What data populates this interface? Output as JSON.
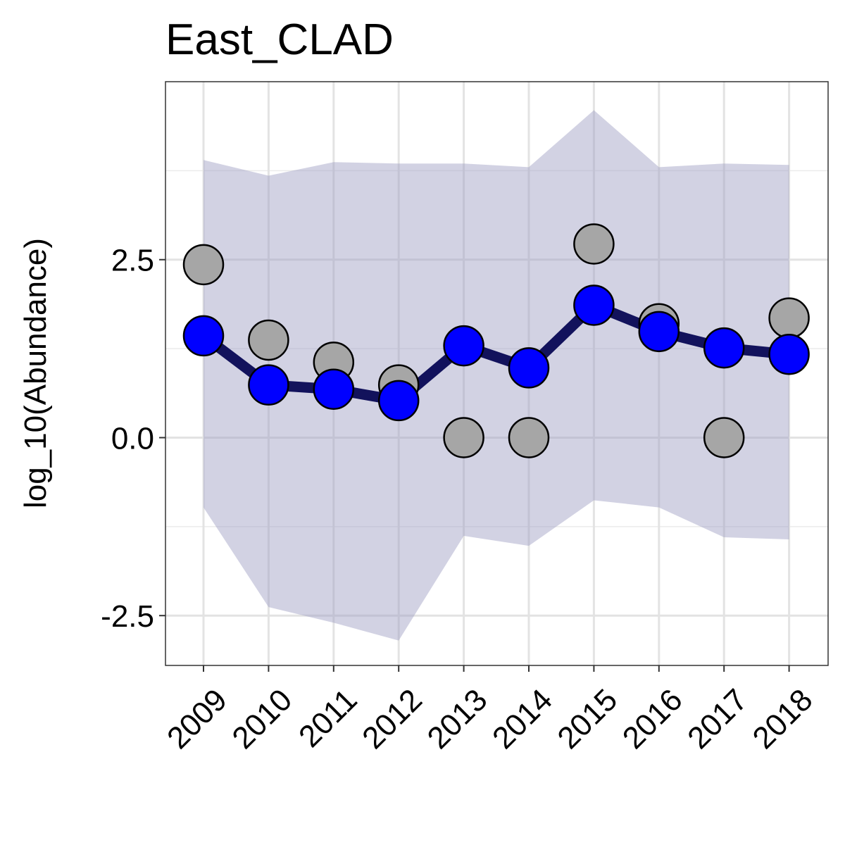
{
  "chart_data": {
    "type": "line",
    "title": "East_CLAD",
    "xlabel": "",
    "ylabel": "log_10(Abundance)",
    "x": [
      "2009",
      "2010",
      "2011",
      "2012",
      "2013",
      "2014",
      "2015",
      "2016",
      "2017",
      "2018"
    ],
    "ylim": [
      -3.2,
      5.0
    ],
    "yticks": [
      -2.5,
      0.0,
      2.5
    ],
    "ytick_labels": [
      "-2.5",
      "0.0",
      "2.5"
    ],
    "grid": true,
    "band": {
      "upper": [
        3.9,
        3.68,
        3.87,
        3.85,
        3.85,
        3.8,
        4.6,
        3.8,
        3.85,
        3.83
      ],
      "lower": [
        -0.98,
        -2.38,
        -2.6,
        -2.85,
        -1.38,
        -1.52,
        -0.88,
        -0.98,
        -1.4,
        -1.43
      ],
      "color": "#9b9bc2"
    },
    "series": [
      {
        "role": "fitted",
        "values": [
          1.43,
          0.74,
          0.68,
          0.52,
          1.29,
          0.98,
          1.86,
          1.49,
          1.26,
          1.17
        ],
        "line_color": "#12125c",
        "point_color": "#0000ff"
      },
      {
        "role": "observed",
        "values": [
          2.43,
          1.37,
          1.06,
          0.74,
          0.0,
          0.0,
          2.72,
          1.6,
          0.0,
          1.68
        ],
        "point_color": "#a6a6a6"
      }
    ]
  }
}
